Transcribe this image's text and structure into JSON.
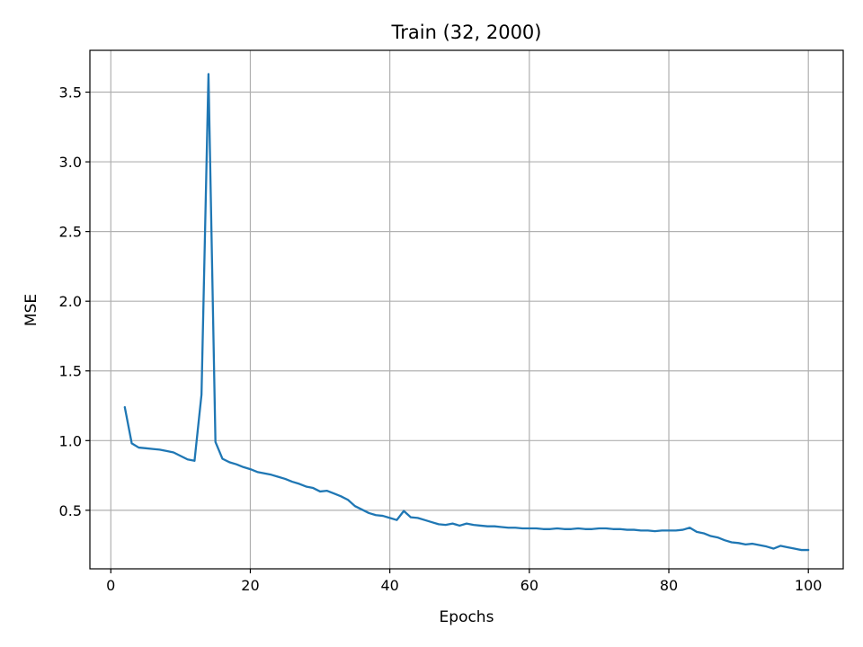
{
  "chart_data": {
    "type": "line",
    "title": "Train (32, 2000)",
    "xlabel": "Epochs",
    "ylabel": "MSE",
    "xlim": [
      -3,
      105
    ],
    "ylim": [
      0.08,
      3.8
    ],
    "xticks": [
      0,
      20,
      40,
      60,
      80,
      100
    ],
    "yticks": [
      0.5,
      1.0,
      1.5,
      2.0,
      2.5,
      3.0,
      3.5
    ],
    "ytick_labels": [
      "0.5",
      "1.0",
      "1.5",
      "2.0",
      "2.5",
      "3.0",
      "3.5"
    ],
    "grid": true,
    "series_color": "#1f77b4",
    "series": [
      {
        "x": [
          2,
          3,
          4,
          5,
          6,
          7,
          8,
          9,
          10,
          11,
          12,
          13,
          14,
          15,
          16,
          17,
          18,
          19,
          20,
          21,
          22,
          23,
          24,
          25,
          26,
          27,
          28,
          29,
          30,
          31,
          32,
          33,
          34,
          35,
          36,
          37,
          38,
          39,
          40,
          41,
          42,
          43,
          44,
          45,
          46,
          47,
          48,
          49,
          50,
          51,
          52,
          53,
          54,
          55,
          56,
          57,
          58,
          59,
          60,
          61,
          62,
          63,
          64,
          65,
          66,
          67,
          68,
          69,
          70,
          71,
          72,
          73,
          74,
          75,
          76,
          77,
          78,
          79,
          80,
          81,
          82,
          83,
          84,
          85,
          86,
          87,
          88,
          89,
          90,
          91,
          92,
          93,
          94,
          95,
          96,
          97,
          98,
          99,
          100
        ],
        "values": [
          1.24,
          0.98,
          0.95,
          0.945,
          0.94,
          0.935,
          0.925,
          0.915,
          0.89,
          0.865,
          0.855,
          1.33,
          3.63,
          0.99,
          0.87,
          0.845,
          0.83,
          0.81,
          0.795,
          0.775,
          0.765,
          0.755,
          0.74,
          0.725,
          0.705,
          0.69,
          0.67,
          0.66,
          0.635,
          0.64,
          0.62,
          0.6,
          0.575,
          0.53,
          0.505,
          0.48,
          0.465,
          0.46,
          0.445,
          0.43,
          0.495,
          0.45,
          0.445,
          0.43,
          0.415,
          0.4,
          0.395,
          0.405,
          0.39,
          0.405,
          0.395,
          0.39,
          0.385,
          0.385,
          0.38,
          0.375,
          0.375,
          0.37,
          0.37,
          0.37,
          0.365,
          0.365,
          0.37,
          0.365,
          0.365,
          0.37,
          0.365,
          0.365,
          0.37,
          0.37,
          0.365,
          0.365,
          0.36,
          0.36,
          0.355,
          0.355,
          0.35,
          0.355,
          0.355,
          0.355,
          0.36,
          0.375,
          0.345,
          0.335,
          0.315,
          0.305,
          0.285,
          0.27,
          0.265,
          0.255,
          0.26,
          0.25,
          0.24,
          0.225,
          0.245,
          0.235,
          0.225,
          0.215,
          0.215
        ]
      }
    ]
  }
}
